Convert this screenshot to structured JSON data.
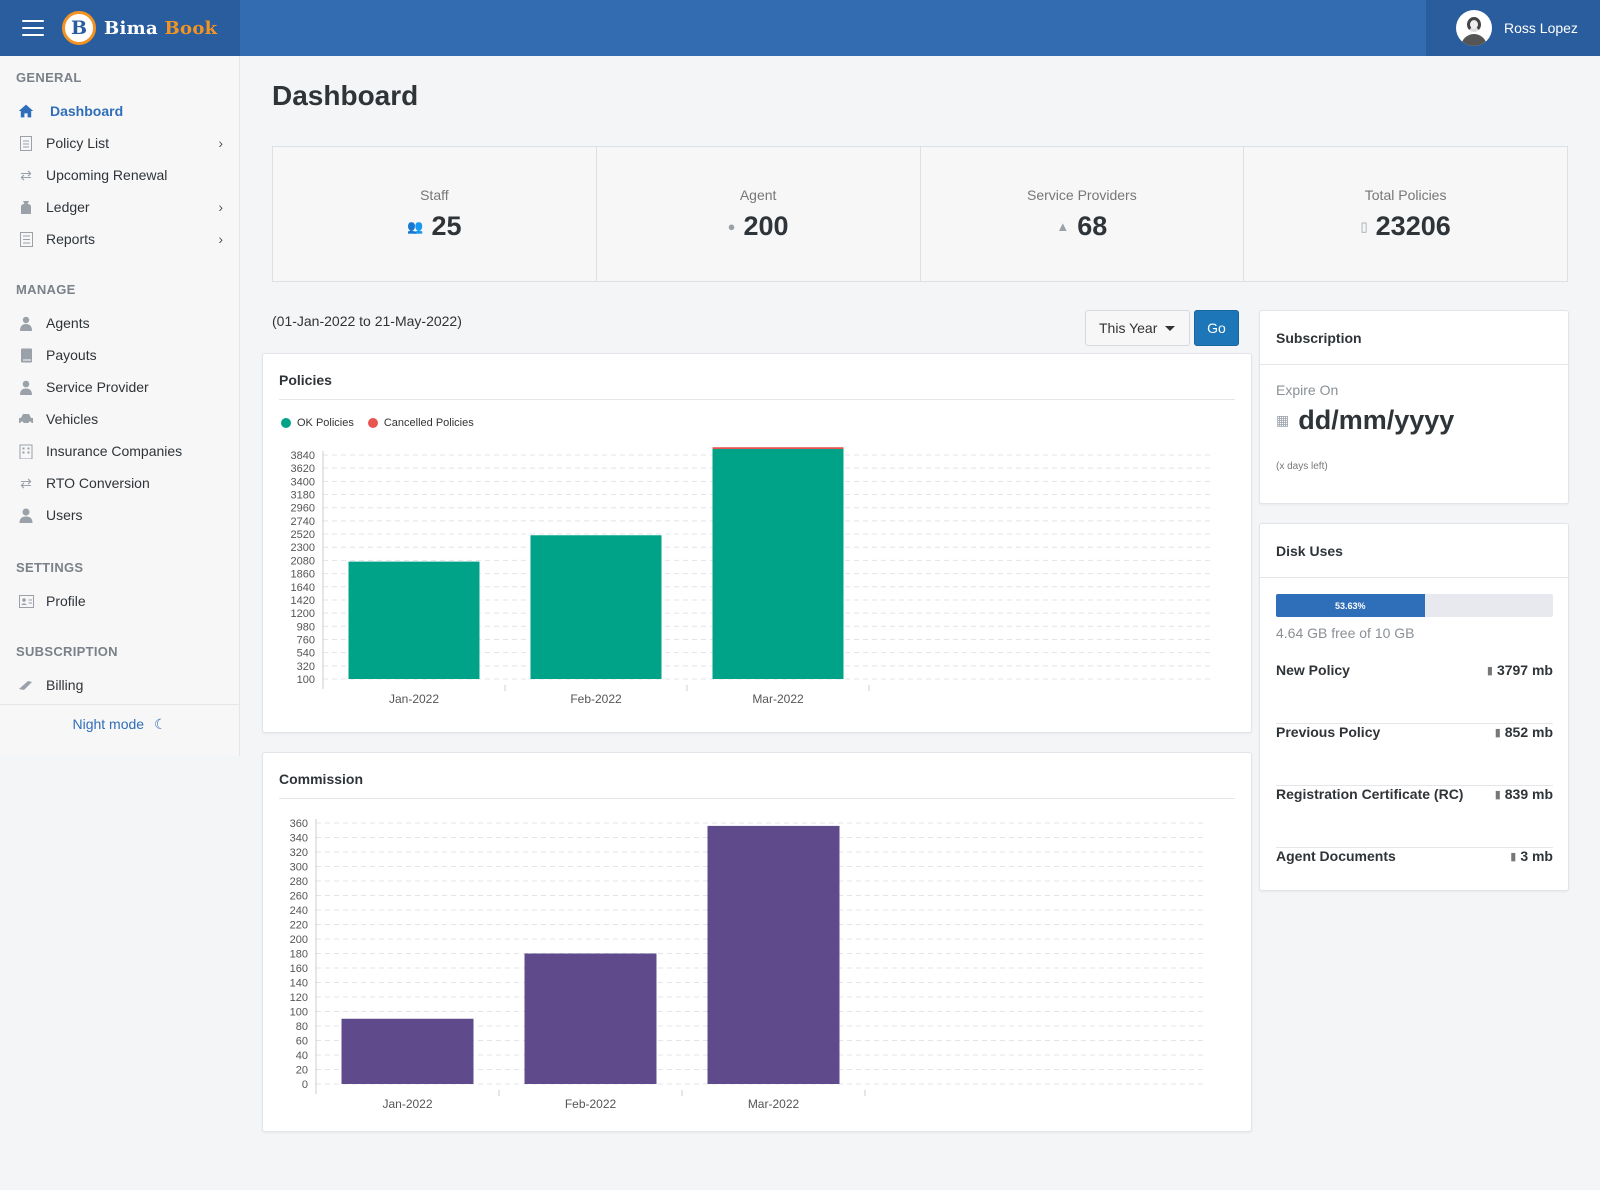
{
  "brand": {
    "logo_letter": "B",
    "name_a": "Bima ",
    "name_b": "Book"
  },
  "user": {
    "name": "Ross Lopez"
  },
  "sidebar": {
    "sections": {
      "general": "GENERAL",
      "manage": "MANAGE",
      "settings": "SETTINGS",
      "subscription": "SUBSCRIPTION"
    },
    "items": [
      {
        "label": "Dashboard",
        "icon": "home-icon"
      },
      {
        "label": "Policy List",
        "icon": "document-icon"
      },
      {
        "label": "Upcoming Renewal",
        "icon": "retweet-icon"
      },
      {
        "label": "Ledger",
        "icon": "money-bag-icon"
      },
      {
        "label": "Reports",
        "icon": "list-icon"
      },
      {
        "label": "Agents",
        "icon": "agent-icon"
      },
      {
        "label": "Payouts",
        "icon": "book-icon"
      },
      {
        "label": "Service Provider",
        "icon": "user-tie-icon"
      },
      {
        "label": "Vehicles",
        "icon": "car-icon"
      },
      {
        "label": "Insurance Companies",
        "icon": "building-icon"
      },
      {
        "label": "RTO Conversion",
        "icon": "exchange-icon"
      },
      {
        "label": "Users",
        "icon": "user-icon"
      },
      {
        "label": "Profile",
        "icon": "id-card-icon"
      },
      {
        "label": "Billing",
        "icon": "money-icon"
      }
    ],
    "night_mode": "Night mode"
  },
  "page": {
    "title": "Dashboard"
  },
  "stats": [
    {
      "label": "Staff",
      "value": "25",
      "icon": "users-icon"
    },
    {
      "label": "Agent",
      "value": "200",
      "icon": "agent-icon"
    },
    {
      "label": "Service Providers",
      "value": "68",
      "icon": "user-tie-icon"
    },
    {
      "label": "Total Policies",
      "value": "23206",
      "icon": "file-icon"
    }
  ],
  "filter": {
    "date_range": "(01-Jan-2022 to 21-May-2022)",
    "period": "This Year",
    "go": "Go"
  },
  "policies_card": {
    "title": "Policies"
  },
  "commission_card": {
    "title": "Commission"
  },
  "chart_data": [
    {
      "type": "bar",
      "title": "Policies",
      "stacked": true,
      "categories": [
        "Jan-2022",
        "Feb-2022",
        "Mar-2022"
      ],
      "series": [
        {
          "name": "OK Policies",
          "color": "#00a388",
          "values": [
            1960,
            2400,
            3840
          ]
        },
        {
          "name": "Cancelled Policies",
          "color": "#e8554e",
          "values": [
            0,
            0,
            30
          ]
        }
      ],
      "ylim": [
        100,
        3840
      ],
      "yticks": [
        3840,
        3620,
        3400,
        3180,
        2960,
        2740,
        2520,
        2300,
        2080,
        1860,
        1640,
        1420,
        1200,
        980,
        760,
        540,
        320,
        100
      ],
      "grid": true,
      "legend_position": "top-left"
    },
    {
      "type": "bar",
      "title": "Commission",
      "categories": [
        "Jan-2022",
        "Feb-2022",
        "Mar-2022"
      ],
      "series": [
        {
          "color": "#5f4b8b",
          "values": [
            90,
            180,
            356
          ]
        }
      ],
      "ylim": [
        0,
        360
      ],
      "yticks": [
        360,
        340,
        320,
        300,
        280,
        260,
        240,
        220,
        200,
        180,
        160,
        140,
        120,
        100,
        80,
        60,
        40,
        20,
        0
      ],
      "grid": true
    }
  ],
  "subscription": {
    "title": "Subscription",
    "expire_label": "Expire On",
    "expire_date": "dd/mm/yyyy",
    "days_left": "(x days left)"
  },
  "disk": {
    "title": "Disk Uses",
    "percent_label": "53.63%",
    "percent": 53.63,
    "free_text": "4.64 GB free of 10 GB",
    "rows": [
      {
        "name": "New Policy",
        "size": "3797 mb"
      },
      {
        "name": "Previous Policy",
        "size": "852 mb"
      },
      {
        "name": "Registration Certificate (RC)",
        "size": "839 mb"
      },
      {
        "name": "Agent Documents",
        "size": "3 mb"
      }
    ]
  }
}
